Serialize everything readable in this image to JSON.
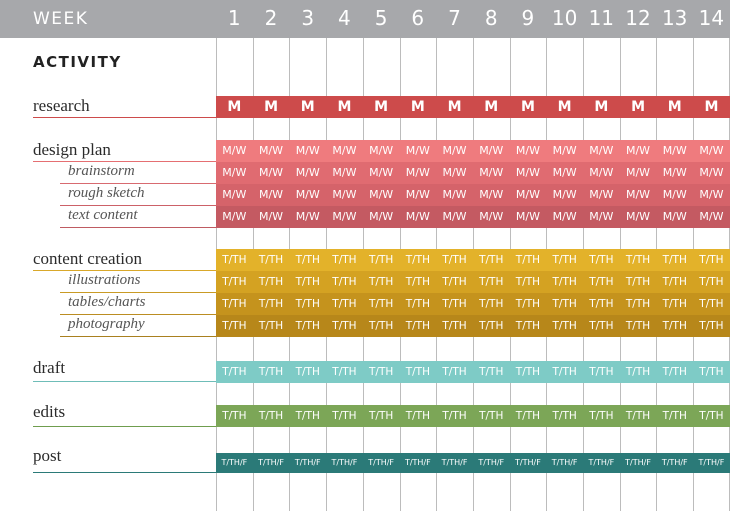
{
  "header": {
    "week_label": "WEEK",
    "weeks": [
      "1",
      "2",
      "3",
      "4",
      "5",
      "6",
      "7",
      "8",
      "9",
      "10",
      "11",
      "12",
      "13",
      "14"
    ]
  },
  "activity_label": "ACTIVITY",
  "rows": [
    {
      "label": "research",
      "level": "main",
      "color": "#cd4b4b",
      "line_color": "#cd4b4b",
      "cell_text": "M"
    },
    {
      "label": "design plan",
      "level": "main",
      "color": "#ef7b7e",
      "line_color": "#e56f72",
      "cell_text": "M/W"
    },
    {
      "label": "brainstorm",
      "level": "sub",
      "color": "#e06b71",
      "line_color": "#d86a70",
      "cell_text": "M/W"
    },
    {
      "label": "rough sketch",
      "level": "sub",
      "color": "#d5636a",
      "line_color": "#cc6168",
      "cell_text": "M/W"
    },
    {
      "label": "text content",
      "level": "sub",
      "color": "#c45a62",
      "line_color": "#bf5b62",
      "cell_text": "M/W"
    },
    {
      "label": "content creation",
      "level": "main",
      "color": "#e3b22a",
      "line_color": "#d9a82a",
      "cell_text": "T/TH"
    },
    {
      "label": "illustrations",
      "level": "sub",
      "color": "#d4a222",
      "line_color": "#c99b25",
      "cell_text": "T/TH"
    },
    {
      "label": "tables/charts",
      "level": "sub",
      "color": "#c5931d",
      "line_color": "#bb8d22",
      "cell_text": "T/TH"
    },
    {
      "label": "photography",
      "level": "sub",
      "color": "#b7871a",
      "line_color": "#a9801f",
      "cell_text": "T/TH"
    },
    {
      "label": "draft",
      "level": "main",
      "color": "#7ecbc6",
      "line_color": "#6fbdb8",
      "cell_text": "T/TH"
    },
    {
      "label": "edits",
      "level": "main",
      "color": "#7ca657",
      "line_color": "#6f9d4e",
      "cell_text": "T/TH"
    },
    {
      "label": "post",
      "level": "main",
      "color": "#2b7a78",
      "line_color": "#2b7a78",
      "cell_text": "T/TH/F"
    }
  ]
}
